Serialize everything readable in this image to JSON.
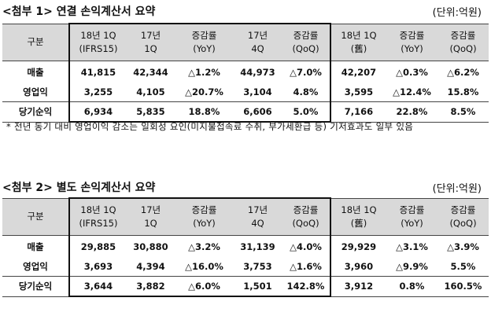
{
  "tables": [
    {
      "title": "<첨부 1> 연결 손익계산서 요약",
      "unit": "(단위:억원)",
      "header": [
        [
          "구분"
        ],
        [
          "18년 1Q",
          "(IFRS15)"
        ],
        [
          "17년",
          "1Q"
        ],
        [
          "증감률",
          "(YoY)"
        ],
        [
          "17년",
          "4Q"
        ],
        [
          "증감률",
          "(QoQ)"
        ],
        [
          "18년 1Q",
          "(舊)"
        ],
        [
          "증감률",
          "(YoY)"
        ],
        [
          "증감률",
          "(QoQ)"
        ]
      ],
      "rows": [
        [
          "매출",
          "41,815",
          "42,344",
          "△1.2%",
          "44,973",
          "△7.0%",
          "42,207",
          "△0.3%",
          "△6.2%"
        ],
        [
          "영업익",
          "3,255",
          "4,105",
          "△20.7%",
          "3,104",
          "4.8%",
          "3,595",
          "△12.4%",
          "15.8%"
        ],
        [
          "당기순익",
          "6,934",
          "5,835",
          "18.8%",
          "6,606",
          "5.0%",
          "7,166",
          "22.8%",
          "8.5%"
        ]
      ]
    },
    {
      "title": "<첨부 2> 별도 손익계산서 요약",
      "unit": "(단위:억원)",
      "header": [
        [
          "구분"
        ],
        [
          "18년 1Q",
          "(IFRS15)"
        ],
        [
          "17년",
          "1Q"
        ],
        [
          "증감률",
          "(YoY)"
        ],
        [
          "17년",
          "4Q"
        ],
        [
          "증감률",
          "(QoQ)"
        ],
        [
          "18년 1Q",
          "(舊)"
        ],
        [
          "증감률",
          "(YoY)"
        ],
        [
          "증감률",
          "(QoQ)"
        ]
      ],
      "rows": [
        [
          "매출",
          "29,885",
          "30,880",
          "△3.2%",
          "31,139",
          "△4.0%",
          "29,929",
          "△3.1%",
          "△3.9%"
        ],
        [
          "영업익",
          "3,693",
          "4,394",
          "△16.0%",
          "3,753",
          "△1.6%",
          "3,960",
          "△9.9%",
          "5.5%"
        ],
        [
          "당기순익",
          "3,644",
          "3,882",
          "△6.0%",
          "1,501",
          "142.8%",
          "3,912",
          "0.8%",
          "160.5%"
        ]
      ]
    }
  ],
  "note": "* 전년 동기 대비 영업이익 감소는 일회성 요인(미지불접속료 수취, 부가세환급 등) 기저효과도 일부 있음"
}
